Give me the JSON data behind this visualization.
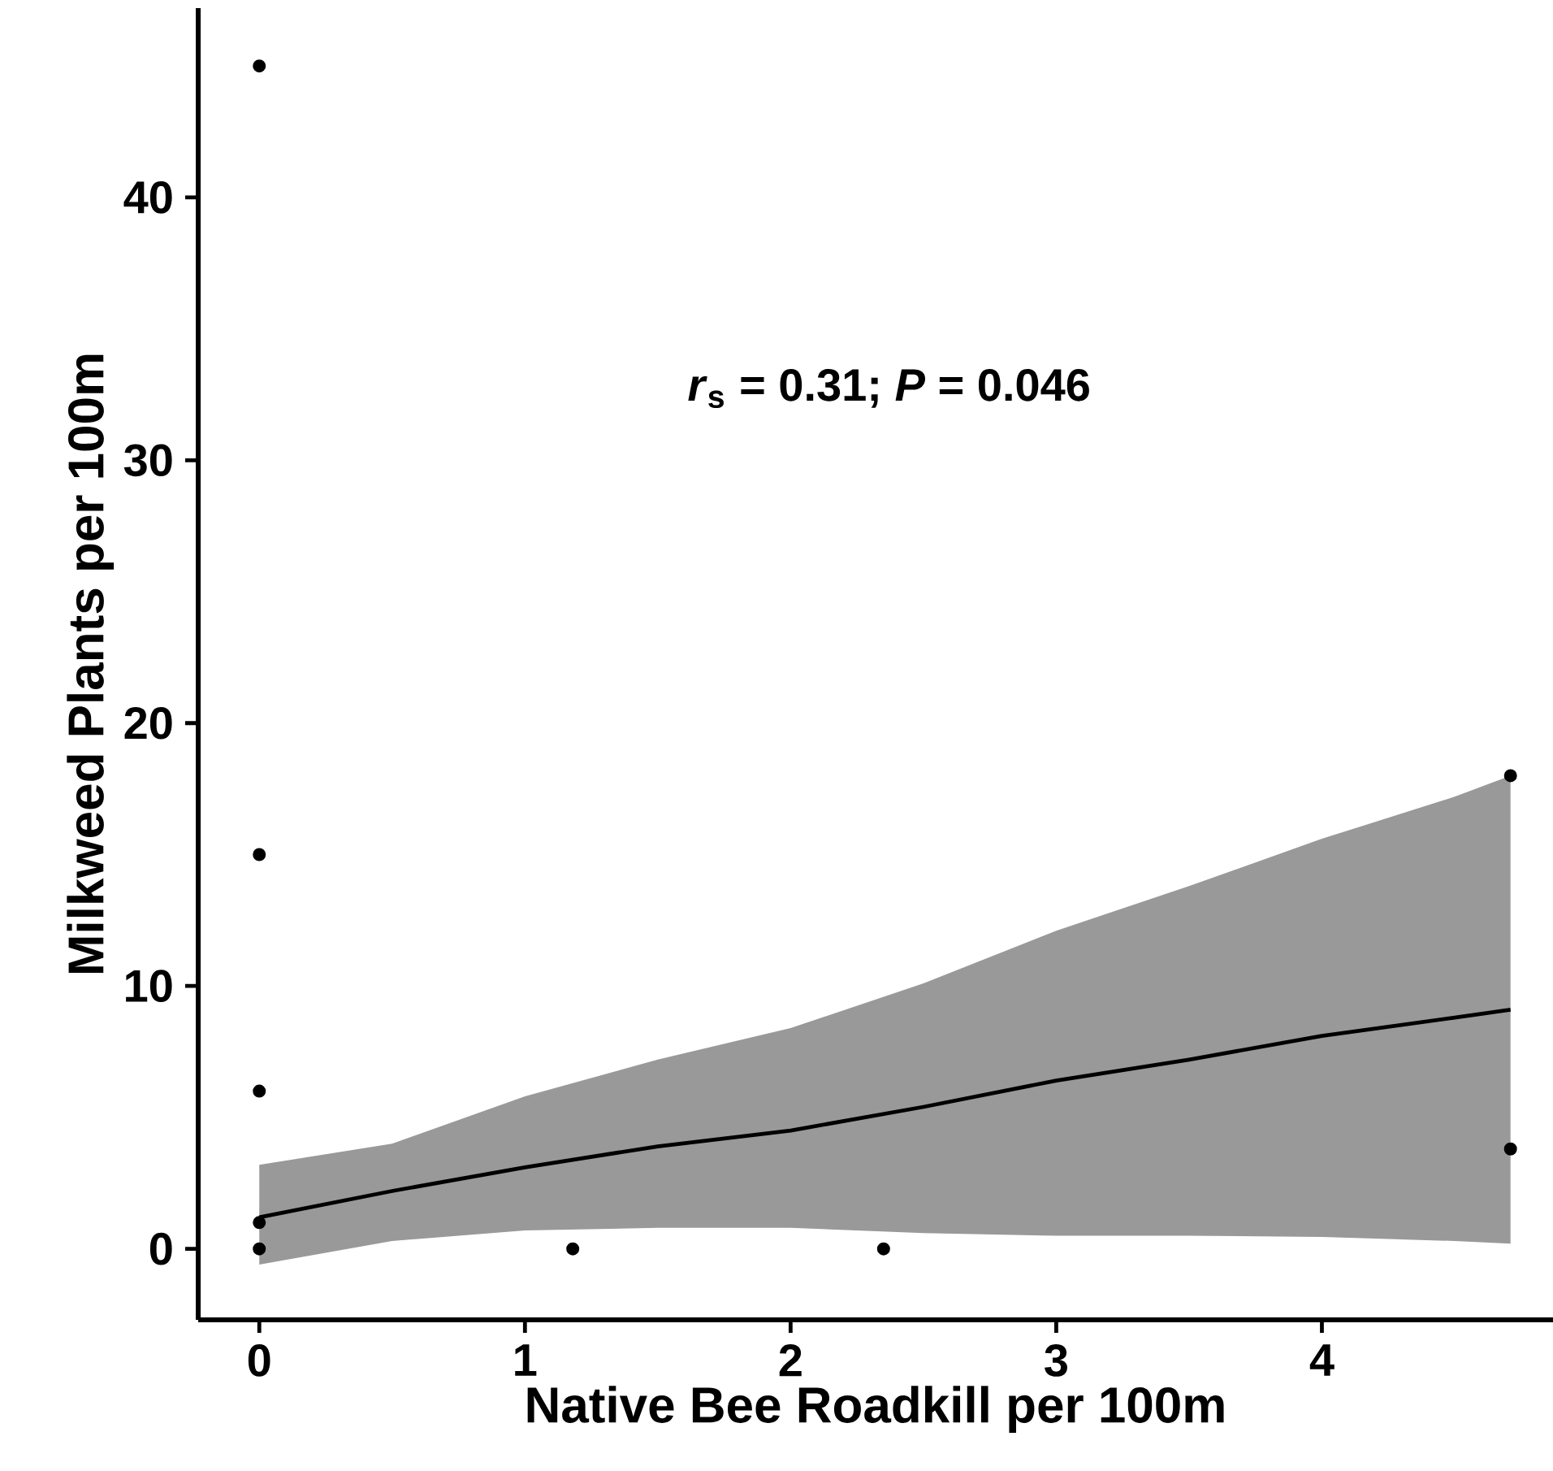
{
  "chart_data": {
    "type": "scatter",
    "xlabel": "Native Bee Roadkill per 100m",
    "ylabel": "Milkweed Plants per 100m",
    "annotations": [
      "*r*$_{s}$ = 0.31; *P* = 0.046"
    ],
    "xlim": [
      -0.23,
      4.87
    ],
    "ylim": [
      -2.7,
      47.2
    ],
    "xticks": [
      0,
      1,
      2,
      3,
      4
    ],
    "yticks": [
      0,
      10,
      20,
      30,
      40
    ],
    "series": [
      {
        "color": "#000000",
        "marker": "circle",
        "x": [
          0,
          0,
          0,
          0,
          0,
          1.18,
          2.35,
          4.71,
          4.71
        ],
        "values": [
          45,
          15,
          6,
          1,
          0,
          0,
          0,
          18,
          3.8
        ]
      },
      {
        "type": "line",
        "color": "#000000",
        "marker": "none",
        "x": [
          0,
          0.5,
          1,
          1.5,
          2,
          2.5,
          3,
          3.5,
          4,
          4.5,
          4.71
        ],
        "values": [
          1.2,
          2.2,
          3.1,
          3.9,
          4.5,
          5.4,
          6.4,
          7.2,
          8.1,
          8.8,
          9.1
        ],
        "lower": [
          -0.6,
          0.3,
          0.7,
          0.8,
          0.8,
          0.6,
          0.5,
          0.5,
          0.45,
          0.3,
          0.2
        ],
        "upper": [
          3.2,
          4.0,
          5.8,
          7.2,
          8.4,
          10.1,
          12.1,
          13.8,
          15.6,
          17.2,
          18.0
        ]
      }
    ]
  }
}
